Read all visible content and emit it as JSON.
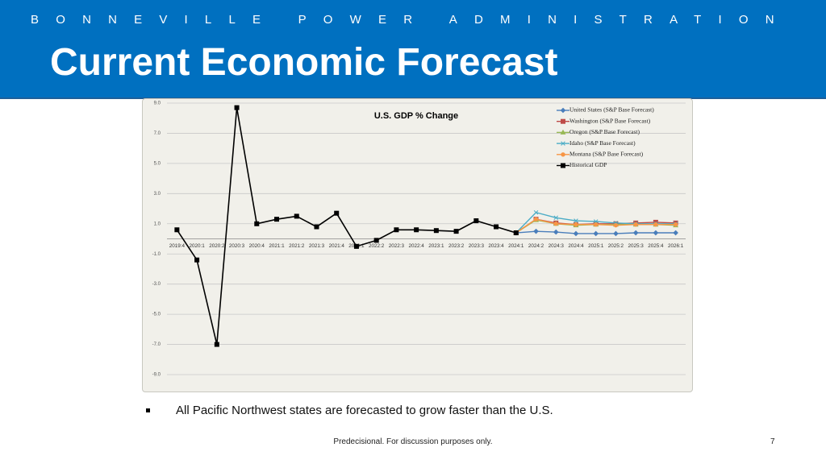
{
  "header": {
    "organization": "BONNEVILLE POWER ADMINISTRATION",
    "title": "Current Economic Forecast"
  },
  "chart_data": {
    "type": "line",
    "title": "U.S. GDP % Change",
    "categories": [
      "2019:4",
      "2020:1",
      "2020:2",
      "2020:3",
      "2020:4",
      "2021:1",
      "2021:2",
      "2021:3",
      "2021:4",
      "2022:1",
      "2022:2",
      "2022:3",
      "2022:4",
      "2023:1",
      "2023:2",
      "2023:3",
      "2023:4",
      "2024:1",
      "2024:2",
      "2024:3",
      "2024:4",
      "2025:1",
      "2025:2",
      "2025:3",
      "2025:4",
      "2026:1"
    ],
    "series": [
      {
        "name": "United States (S&P Base Forecast)",
        "color": "#4a7ebb",
        "marker": "diamond",
        "values": [
          null,
          null,
          null,
          null,
          null,
          null,
          null,
          null,
          null,
          null,
          null,
          null,
          null,
          null,
          null,
          null,
          null,
          0.4,
          0.5,
          0.45,
          0.35,
          0.35,
          0.35,
          0.4,
          0.4,
          0.4
        ]
      },
      {
        "name": "Washington (S&P Base Forecast)",
        "color": "#be4b48",
        "marker": "square",
        "values": [
          null,
          null,
          null,
          null,
          null,
          null,
          null,
          null,
          null,
          null,
          null,
          null,
          null,
          null,
          null,
          null,
          null,
          0.4,
          1.3,
          1.05,
          0.95,
          1.0,
          1.0,
          1.05,
          1.1,
          1.05
        ]
      },
      {
        "name": "Oregon (S&P Base Forecast)",
        "color": "#98b954",
        "marker": "triangle",
        "values": [
          null,
          null,
          null,
          null,
          null,
          null,
          null,
          null,
          null,
          null,
          null,
          null,
          null,
          null,
          null,
          null,
          null,
          0.4,
          1.25,
          1.0,
          0.9,
          0.95,
          0.95,
          0.95,
          0.95,
          0.9
        ]
      },
      {
        "name": "Idaho (S&P Base Forecast)",
        "color": "#4bacc6",
        "marker": "x",
        "values": [
          null,
          null,
          null,
          null,
          null,
          null,
          null,
          null,
          null,
          null,
          null,
          null,
          null,
          null,
          null,
          null,
          null,
          0.4,
          1.75,
          1.4,
          1.2,
          1.15,
          1.05,
          1.0,
          1.0,
          1.0
        ]
      },
      {
        "name": "Montana (S&P Base Forecast)",
        "color": "#f79646",
        "marker": "circle",
        "values": [
          null,
          null,
          null,
          null,
          null,
          null,
          null,
          null,
          null,
          null,
          null,
          null,
          null,
          null,
          null,
          null,
          null,
          0.4,
          1.3,
          1.0,
          0.95,
          0.95,
          0.9,
          0.95,
          0.95,
          0.95
        ]
      },
      {
        "name": "Historical GDP",
        "color": "#000000",
        "marker": "square",
        "values": [
          0.6,
          -1.4,
          -7.0,
          8.7,
          1.0,
          1.3,
          1.5,
          0.8,
          1.7,
          -0.5,
          -0.1,
          0.6,
          0.6,
          0.55,
          0.5,
          1.2,
          0.8,
          0.4,
          null,
          null,
          null,
          null,
          null,
          null,
          null,
          null
        ]
      }
    ],
    "ylim": [
      -9,
      9
    ],
    "yticks": [
      {
        "value": -9,
        "label": "-9.0"
      },
      {
        "value": -7,
        "label": "-7.0"
      },
      {
        "value": -5,
        "label": "-5.0"
      },
      {
        "value": -3,
        "label": "-3.0"
      },
      {
        "value": -1,
        "label": "-1.0"
      },
      {
        "value": 1,
        "label": "1.0"
      },
      {
        "value": 3,
        "label": "3.0"
      },
      {
        "value": 5,
        "label": "5.0"
      },
      {
        "value": 7,
        "label": "7.0"
      },
      {
        "value": 9,
        "label": "9.0"
      }
    ],
    "grid": true,
    "legend": "top-right"
  },
  "note": "All Pacific Northwest states are forecasted to grow faster than the U.S.",
  "footer": "Predecisional. For discussion purposes only.",
  "page_number": "7"
}
